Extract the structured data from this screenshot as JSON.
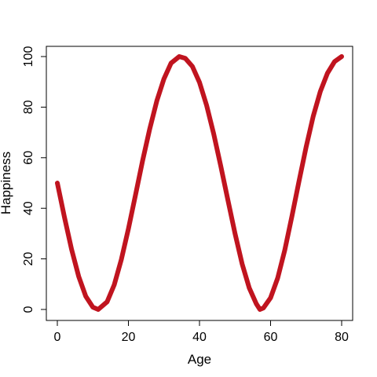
{
  "chart_data": {
    "type": "line",
    "title": "",
    "xlabel": "Age",
    "ylabel": "Happiness",
    "xlim": [
      0,
      80
    ],
    "ylim": [
      0,
      100
    ],
    "x_ticks": [
      0,
      20,
      40,
      60,
      80
    ],
    "y_ticks": [
      0,
      20,
      40,
      60,
      80,
      100
    ],
    "x_tick_labels": [
      "0",
      "20",
      "40",
      "60",
      "80"
    ],
    "y_tick_labels": [
      "0",
      "20",
      "40",
      "60",
      "80",
      "100"
    ],
    "grid": false,
    "series": [
      {
        "color": "#c0141f",
        "x": [
          0,
          2,
          4,
          6,
          8,
          10,
          11.5,
          14,
          16,
          18,
          20,
          22,
          24,
          26,
          28,
          30,
          32,
          34.3,
          36,
          38,
          40,
          42,
          44,
          46,
          48,
          50,
          52,
          54,
          56,
          57,
          58,
          60,
          62,
          64,
          66,
          68,
          70,
          72,
          74,
          76,
          78,
          80
        ],
        "y": [
          50,
          36.5,
          23.8,
          13.1,
          5.2,
          0.9,
          0,
          3.0,
          9.7,
          19.7,
          31.9,
          45.3,
          58.9,
          71.4,
          82.5,
          91.2,
          97.4,
          100,
          99.3,
          96.1,
          89.8,
          80.7,
          69.4,
          56.6,
          43.2,
          30.0,
          18.0,
          8.5,
          2.2,
          0,
          0.6,
          4.6,
          12.4,
          23.5,
          36.8,
          50.7,
          64.2,
          76.4,
          86.2,
          93.4,
          98.0,
          100
        ]
      }
    ]
  }
}
